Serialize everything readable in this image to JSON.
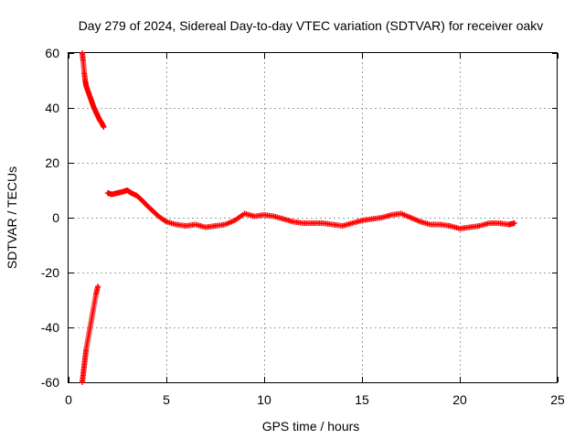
{
  "chart_data": {
    "type": "scatter",
    "title": "Day 279 of 2024, Sidereal Day-to-day VTEC variation (SDTVAR) for receiver oakv",
    "xlabel": "GPS time / hours",
    "ylabel": "SDTVAR / TECUs",
    "xlim": [
      0,
      25
    ],
    "ylim": [
      -60,
      60
    ],
    "xticks": [
      0,
      5,
      10,
      15,
      20,
      25
    ],
    "yticks": [
      -60,
      -40,
      -20,
      0,
      20,
      40,
      60
    ],
    "grid": true,
    "marker": "+",
    "series_color": "#ff0000",
    "segments": [
      {
        "name": "early-upper",
        "x": [
          0.7,
          0.75,
          0.8,
          0.85,
          0.9,
          1.0,
          1.1,
          1.2,
          1.3,
          1.4,
          1.5,
          1.6,
          1.7,
          1.8
        ],
        "y": [
          60,
          57,
          53,
          50,
          48,
          46,
          44,
          42,
          40,
          38.5,
          37,
          35.5,
          34.5,
          33
        ]
      },
      {
        "name": "early-lower",
        "x": [
          0.7,
          0.75,
          0.8,
          0.85,
          0.9,
          1.0,
          1.1,
          1.2,
          1.3,
          1.4,
          1.5
        ],
        "y": [
          -60,
          -57,
          -54,
          -51,
          -48,
          -44,
          -40,
          -36,
          -32,
          -28,
          -25
        ]
      },
      {
        "name": "main",
        "x": [
          2.0,
          2.2,
          2.5,
          2.8,
          3.0,
          3.2,
          3.5,
          3.8,
          4.0,
          4.3,
          4.6,
          5.0,
          5.5,
          6.0,
          6.5,
          7.0,
          7.5,
          8.0,
          8.5,
          9.0,
          9.5,
          10.0,
          10.5,
          11.0,
          11.5,
          12.0,
          12.5,
          13.0,
          13.5,
          14.0,
          14.5,
          15.0,
          15.5,
          16.0,
          16.5,
          17.0,
          17.5,
          18.0,
          18.5,
          19.0,
          19.5,
          20.0,
          20.5,
          21.0,
          21.5,
          22.0,
          22.5,
          22.8
        ],
        "y": [
          9,
          8.5,
          9,
          9.5,
          10,
          9,
          8,
          6,
          4.5,
          2.5,
          0.5,
          -1.5,
          -2.5,
          -3,
          -2.5,
          -3.5,
          -3,
          -2.5,
          -1,
          1.5,
          0.5,
          1,
          0.5,
          -0.5,
          -1.5,
          -2,
          -2,
          -2,
          -2.5,
          -3,
          -2,
          -1,
          -0.5,
          0,
          1,
          1.5,
          0,
          -1.5,
          -2.5,
          -2.5,
          -3,
          -4,
          -3.5,
          -3,
          -2,
          -2,
          -2.5,
          -2
        ]
      }
    ]
  }
}
